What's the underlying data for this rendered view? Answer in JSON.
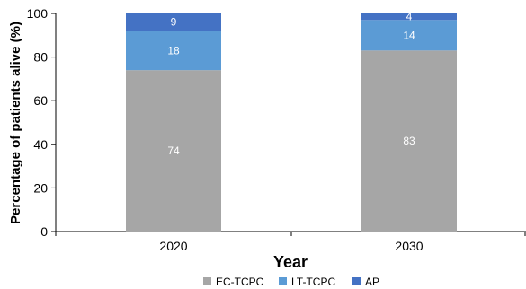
{
  "chart_data": {
    "type": "bar",
    "stacked": true,
    "categories": [
      "2020",
      "2030"
    ],
    "series": [
      {
        "name": "EC-TCPC",
        "values": [
          74,
          83
        ],
        "color": "#a6a6a6"
      },
      {
        "name": "LT-TCPC",
        "values": [
          18,
          14
        ],
        "color": "#5b9bd5"
      },
      {
        "name": "AP",
        "values": [
          9,
          4
        ],
        "color": "#4472c4"
      }
    ],
    "title": "",
    "xlabel": "Year",
    "ylabel": "Percentage of patients alive (%)",
    "ylim": [
      0,
      100
    ],
    "yticks": [
      0,
      20,
      40,
      60,
      80,
      100
    ],
    "grid": false,
    "legend_position": "bottom"
  }
}
